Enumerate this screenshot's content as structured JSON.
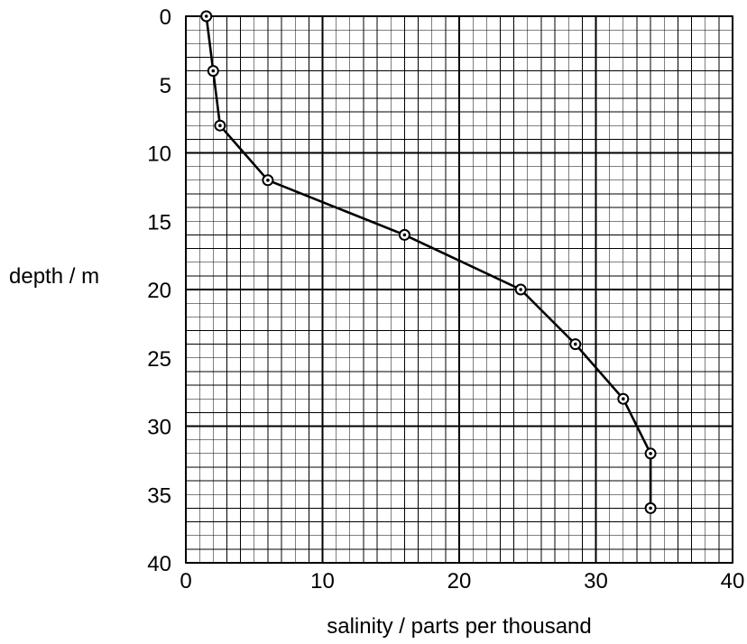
{
  "chart_data": {
    "type": "line",
    "title": "",
    "xlabel": "salinity / parts per thousand",
    "ylabel": "depth / m",
    "xlim": [
      0,
      40
    ],
    "ylim": [
      0,
      40
    ],
    "y_axis_inverted": true,
    "x_ticks": [
      "0",
      "10",
      "20",
      "30",
      "40"
    ],
    "y_ticks": [
      "0",
      "5",
      "10",
      "15",
      "20",
      "25",
      "30",
      "35",
      "40"
    ],
    "grid": "major gridlines every 10 (x) and 10 (y), minor gridlines every 1 (x) and 1 (y)",
    "marker": "circle with center dot",
    "series": [
      {
        "x": [
          1.5,
          2,
          2.5,
          6,
          16,
          24.5,
          28.5,
          32,
          34,
          34
        ],
        "y": [
          0,
          4,
          8,
          12,
          16,
          20,
          24,
          28,
          32,
          36
        ]
      }
    ]
  },
  "colors": {
    "line": "#000000",
    "grid": "#000000",
    "background": "#ffffff"
  }
}
